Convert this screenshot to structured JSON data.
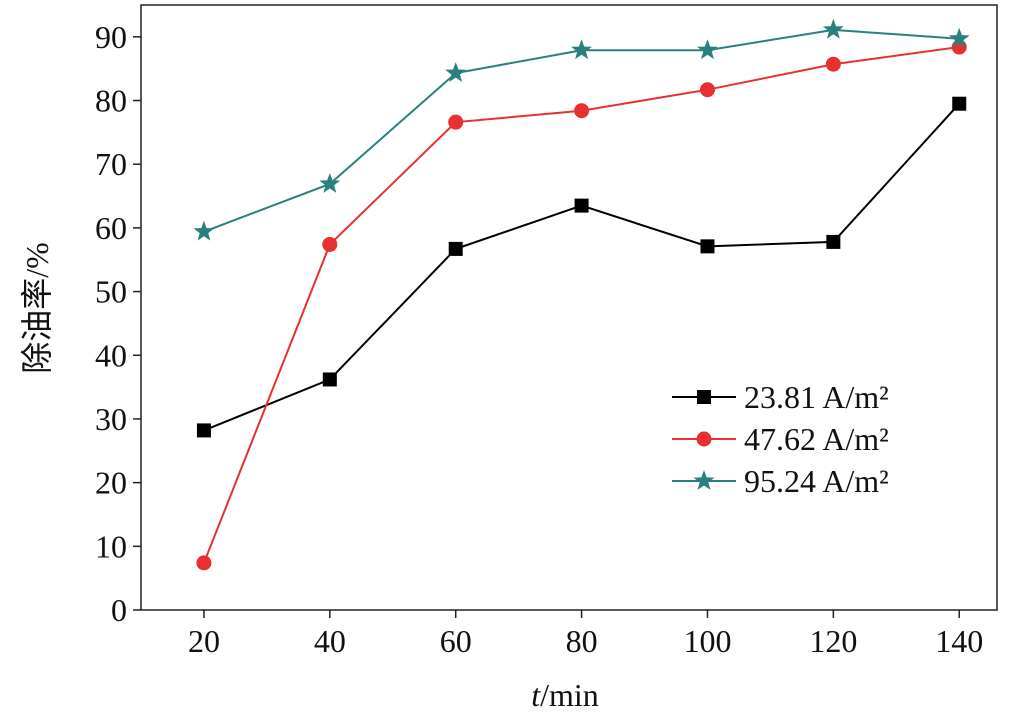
{
  "chart_data": {
    "type": "line",
    "xlabel_italic": "t",
    "xlabel_rest": "/min",
    "ylabel": "除油率/%",
    "x": [
      20,
      40,
      60,
      80,
      100,
      120,
      140
    ],
    "xticks": [
      20,
      40,
      60,
      80,
      100,
      120,
      140
    ],
    "yticks": [
      0,
      10,
      20,
      30,
      40,
      50,
      60,
      70,
      80,
      90
    ],
    "xlim": [
      10,
      146
    ],
    "ylim": [
      0,
      95
    ],
    "grid": false,
    "legend_position": "center-right",
    "series": [
      {
        "name": "23.81 A/m²",
        "color": "#000000",
        "marker": "square",
        "values": [
          28.2,
          36.2,
          56.7,
          63.5,
          57.1,
          57.8,
          79.5
        ]
      },
      {
        "name": "47.62 A/m²",
        "color": "#e8302e",
        "marker": "circle",
        "values": [
          7.4,
          57.4,
          76.6,
          78.4,
          81.7,
          85.7,
          88.4
        ]
      },
      {
        "name": "95.24 A/m²",
        "color": "#2a7f7f",
        "marker": "star",
        "values": [
          59.4,
          66.9,
          84.3,
          87.9,
          87.9,
          91.1,
          89.7
        ]
      }
    ]
  }
}
